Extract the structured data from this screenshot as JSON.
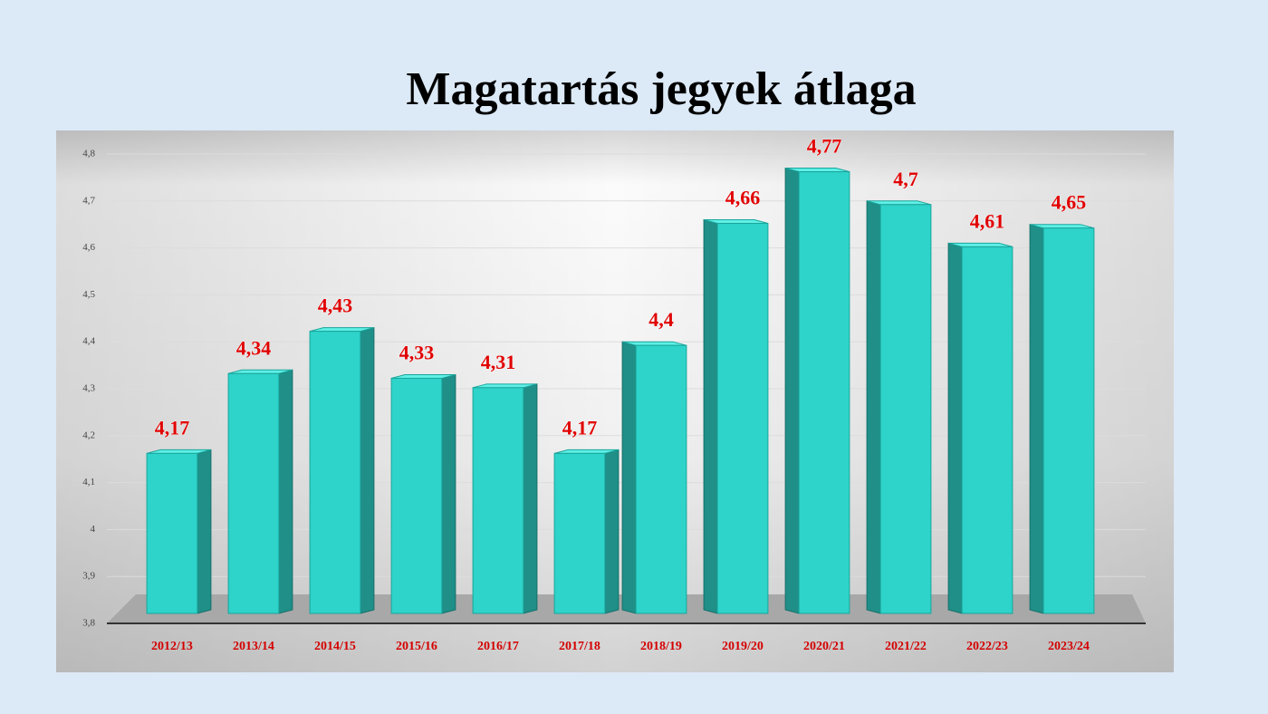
{
  "chart_data": {
    "type": "bar",
    "title": "Magatartás jegyek átlaga",
    "categories": [
      "2012/13",
      "2013/14",
      "2014/15",
      "2015/16",
      "2016/17",
      "2017/18",
      "2018/19",
      "2019/20",
      "2020/21",
      "2021/22",
      "2022/23",
      "2023/24"
    ],
    "values": [
      4.17,
      4.34,
      4.43,
      4.33,
      4.31,
      4.17,
      4.4,
      4.66,
      4.77,
      4.7,
      4.61,
      4.65
    ],
    "value_labels": [
      "4,17",
      "4,34",
      "4,43",
      "4,33",
      "4,31",
      "4,17",
      "4,4",
      "4,66",
      "4,77",
      "4,7",
      "4,61",
      "4,65"
    ],
    "color": "#2ed3c9",
    "ylim": [
      3.8,
      4.8
    ],
    "yticks": [
      {
        "value": 3.8,
        "label": "3,8"
      },
      {
        "value": 3.9,
        "label": "3,9"
      },
      4,
      {
        "value": 4.1,
        "label": "4,1"
      },
      {
        "value": 4.2,
        "label": "4,2"
      },
      {
        "value": 4.3,
        "label": "4,3"
      },
      {
        "value": 4.4,
        "label": "4,4"
      },
      {
        "value": 4.5,
        "label": "4,5"
      },
      {
        "value": 4.6,
        "label": "4,6"
      },
      {
        "value": 4.7,
        "label": "4,7"
      },
      {
        "value": 4.8,
        "label": "4,8"
      }
    ],
    "grid": true
  }
}
